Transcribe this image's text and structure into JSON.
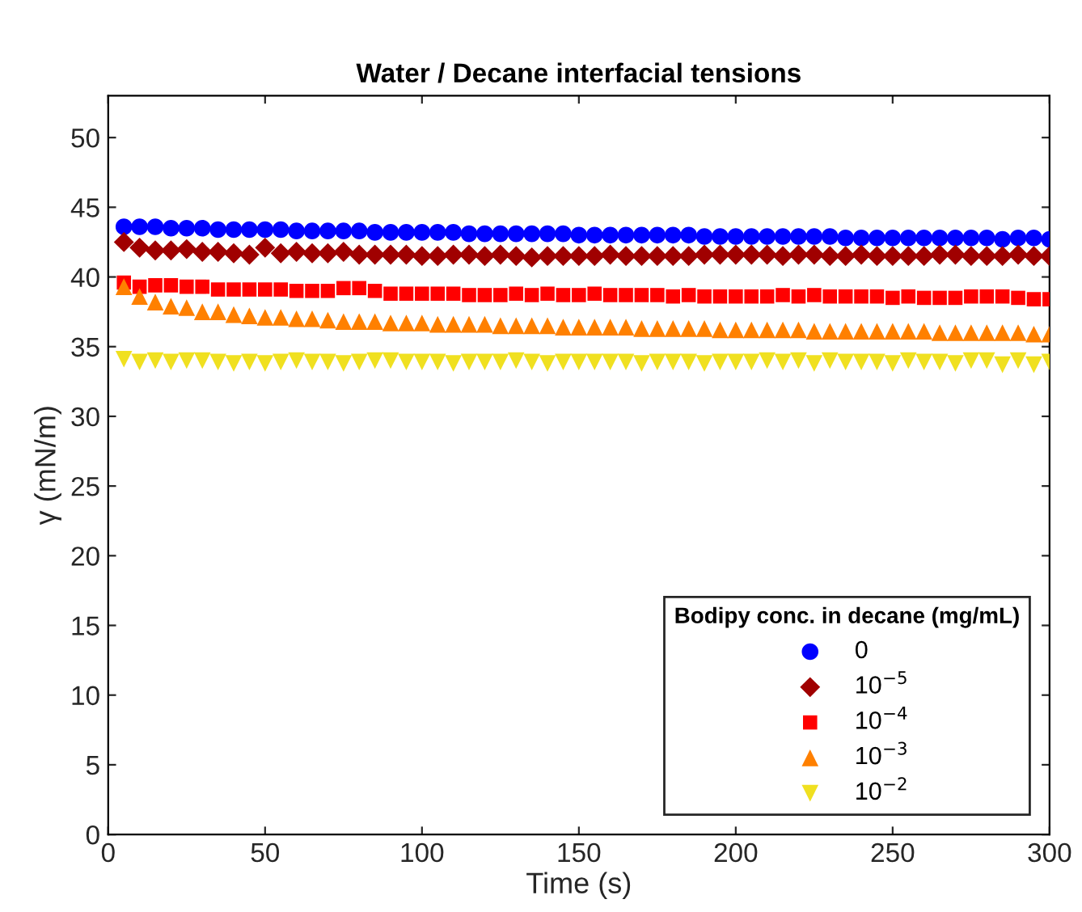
{
  "chart_data": {
    "type": "scatter",
    "title": "Water / Decane interfacial tensions",
    "xlabel": "Time (s)",
    "ylabel": "γ (mN/m)",
    "legend_title": "Bodipy conc. in decane (mg/mL)",
    "legend": "bottom right",
    "grid": false,
    "x": [
      5,
      10,
      15,
      20,
      25,
      30,
      35,
      40,
      45,
      50,
      55,
      60,
      65,
      70,
      75,
      80,
      85,
      90,
      95,
      100,
      105,
      110,
      115,
      120,
      125,
      130,
      135,
      140,
      145,
      150,
      155,
      160,
      165,
      170,
      175,
      180,
      185,
      190,
      195,
      200,
      205,
      210,
      215,
      220,
      225,
      230,
      235,
      240,
      245,
      250,
      255,
      260,
      265,
      270,
      275,
      280,
      285,
      290,
      295,
      300
    ],
    "xlim": [
      0,
      300
    ],
    "xticks": [
      0,
      50,
      100,
      150,
      200,
      250,
      300
    ],
    "ylim": [
      0,
      53
    ],
    "yticks": [
      0,
      5,
      10,
      15,
      20,
      25,
      30,
      35,
      40,
      45,
      50
    ],
    "series": [
      {
        "name": "0",
        "color": "#0000ff",
        "marker": "circle",
        "values": [
          43.6,
          43.6,
          43.6,
          43.5,
          43.5,
          43.5,
          43.4,
          43.4,
          43.4,
          43.4,
          43.4,
          43.3,
          43.3,
          43.3,
          43.3,
          43.3,
          43.2,
          43.2,
          43.2,
          43.2,
          43.2,
          43.2,
          43.1,
          43.1,
          43.1,
          43.1,
          43.1,
          43.1,
          43.1,
          43.0,
          43.0,
          43.0,
          43.0,
          43.0,
          43.0,
          43.0,
          43.0,
          42.9,
          42.9,
          42.9,
          42.9,
          42.9,
          42.9,
          42.9,
          42.9,
          42.9,
          42.8,
          42.8,
          42.8,
          42.8,
          42.8,
          42.8,
          42.8,
          42.8,
          42.8,
          42.8,
          42.7,
          42.8,
          42.8,
          42.7
        ]
      },
      {
        "name": "10$^{−5}$",
        "color": "#a00000",
        "marker": "diamond",
        "values": [
          42.5,
          42.1,
          41.9,
          41.9,
          42.0,
          41.8,
          41.8,
          41.7,
          41.6,
          42.1,
          41.7,
          41.8,
          41.7,
          41.7,
          41.8,
          41.6,
          41.6,
          41.6,
          41.6,
          41.5,
          41.5,
          41.6,
          41.6,
          41.5,
          41.6,
          41.5,
          41.4,
          41.5,
          41.5,
          41.5,
          41.5,
          41.6,
          41.5,
          41.5,
          41.5,
          41.5,
          41.5,
          41.6,
          41.6,
          41.6,
          41.6,
          41.6,
          41.5,
          41.6,
          41.6,
          41.5,
          41.5,
          41.6,
          41.5,
          41.5,
          41.5,
          41.5,
          41.6,
          41.6,
          41.5,
          41.5,
          41.5,
          41.6,
          41.5,
          41.5
        ]
      },
      {
        "name": "10$^{−4}$",
        "color": "#ff0000",
        "marker": "square",
        "values": [
          39.6,
          39.3,
          39.4,
          39.4,
          39.3,
          39.3,
          39.1,
          39.1,
          39.1,
          39.1,
          39.1,
          39.0,
          39.0,
          39.0,
          39.2,
          39.2,
          39.0,
          38.8,
          38.8,
          38.8,
          38.8,
          38.8,
          38.7,
          38.7,
          38.7,
          38.8,
          38.7,
          38.8,
          38.7,
          38.7,
          38.8,
          38.7,
          38.7,
          38.7,
          38.7,
          38.6,
          38.7,
          38.6,
          38.6,
          38.6,
          38.6,
          38.6,
          38.7,
          38.6,
          38.7,
          38.6,
          38.6,
          38.6,
          38.6,
          38.5,
          38.6,
          38.5,
          38.5,
          38.5,
          38.6,
          38.6,
          38.6,
          38.5,
          38.4,
          38.4
        ]
      },
      {
        "name": "10$^{−3}$",
        "color": "#ff8000",
        "marker": "triangle",
        "values": [
          39.3,
          38.6,
          38.2,
          37.9,
          37.8,
          37.5,
          37.5,
          37.3,
          37.2,
          37.1,
          37.1,
          37.0,
          37.0,
          36.9,
          36.8,
          36.8,
          36.8,
          36.7,
          36.7,
          36.7,
          36.6,
          36.6,
          36.6,
          36.6,
          36.5,
          36.5,
          36.5,
          36.5,
          36.4,
          36.4,
          36.4,
          36.4,
          36.4,
          36.3,
          36.3,
          36.3,
          36.3,
          36.3,
          36.2,
          36.2,
          36.2,
          36.2,
          36.2,
          36.2,
          36.1,
          36.1,
          36.1,
          36.1,
          36.1,
          36.1,
          36.1,
          36.1,
          36.0,
          36.0,
          36.0,
          36.0,
          36.0,
          36.0,
          35.9,
          35.9
        ]
      },
      {
        "name": "10$^{−2}$",
        "color": "#f0e020",
        "marker": "triangle_down",
        "values": [
          34.1,
          33.9,
          34.0,
          33.9,
          34.0,
          34.0,
          33.9,
          33.8,
          33.9,
          33.8,
          33.9,
          34.0,
          33.9,
          33.9,
          33.8,
          33.9,
          34.0,
          34.0,
          33.9,
          33.9,
          33.9,
          33.8,
          33.9,
          33.9,
          33.9,
          34.0,
          33.9,
          33.8,
          33.9,
          33.9,
          33.9,
          33.9,
          33.9,
          33.8,
          33.9,
          33.9,
          33.9,
          33.8,
          33.9,
          33.9,
          33.9,
          34.0,
          33.9,
          34.0,
          33.8,
          34.0,
          33.9,
          33.9,
          33.9,
          33.8,
          34.0,
          33.9,
          33.9,
          33.8,
          34.0,
          34.0,
          33.7,
          34.0,
          33.7,
          33.9
        ]
      }
    ]
  }
}
